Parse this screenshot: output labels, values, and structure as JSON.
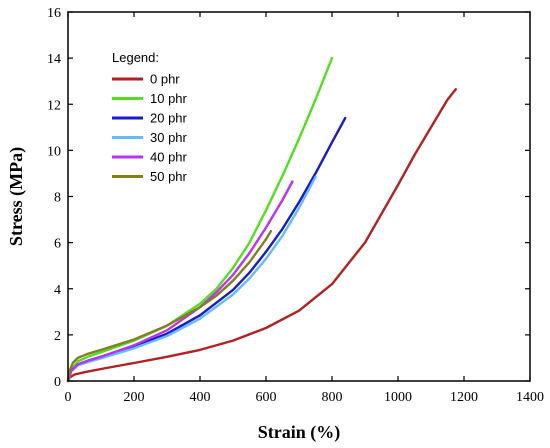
{
  "chart_data": {
    "type": "line",
    "title": "",
    "xlabel": "Strain (%)",
    "ylabel": "Stress (MPa)",
    "xlim": [
      0,
      1400
    ],
    "ylim": [
      0,
      16
    ],
    "xticks": [
      0,
      200,
      400,
      600,
      800,
      1000,
      1200,
      1400
    ],
    "yticks": [
      0,
      2,
      4,
      6,
      8,
      10,
      12,
      14,
      16
    ],
    "grid": false,
    "legend": {
      "title": "Legend:",
      "position": "top-left"
    },
    "series": [
      {
        "name": "0 phr",
        "color": "#b22222",
        "x": [
          0,
          5,
          20,
          50,
          100,
          200,
          300,
          400,
          500,
          600,
          700,
          800,
          900,
          1000,
          1050,
          1100,
          1150,
          1175
        ],
        "y": [
          0,
          0.15,
          0.28,
          0.38,
          0.52,
          0.78,
          1.05,
          1.35,
          1.75,
          2.3,
          3.05,
          4.2,
          6.0,
          8.5,
          9.8,
          11.0,
          12.2,
          12.65
        ]
      },
      {
        "name": "10 phr",
        "color": "#55dd22",
        "x": [
          0,
          10,
          30,
          60,
          100,
          200,
          300,
          400,
          450,
          500,
          550,
          600,
          650,
          700,
          750,
          800
        ],
        "y": [
          0,
          0.5,
          0.85,
          1.05,
          1.25,
          1.75,
          2.4,
          3.35,
          4.0,
          4.9,
          6.0,
          7.4,
          8.9,
          10.5,
          12.2,
          14.0
        ]
      },
      {
        "name": "20 phr",
        "color": "#1a1acc",
        "x": [
          0,
          10,
          30,
          60,
          100,
          200,
          300,
          400,
          500,
          550,
          600,
          650,
          700,
          750,
          800,
          840
        ],
        "y": [
          0,
          0.45,
          0.72,
          0.88,
          1.05,
          1.5,
          2.05,
          2.85,
          3.95,
          4.7,
          5.6,
          6.6,
          7.75,
          9.0,
          10.35,
          11.4
        ]
      },
      {
        "name": "30 phr",
        "color": "#66bbff",
        "x": [
          0,
          10,
          30,
          60,
          100,
          200,
          300,
          400,
          500,
          550,
          600,
          650,
          700,
          750
        ],
        "y": [
          0,
          0.42,
          0.68,
          0.82,
          0.98,
          1.42,
          1.95,
          2.7,
          3.75,
          4.45,
          5.3,
          6.3,
          7.5,
          8.85
        ]
      },
      {
        "name": "40 phr",
        "color": "#bb33ee",
        "x": [
          0,
          10,
          30,
          60,
          100,
          200,
          300,
          400,
          450,
          500,
          550,
          600,
          650,
          680
        ],
        "y": [
          0,
          0.45,
          0.72,
          0.88,
          1.05,
          1.55,
          2.2,
          3.2,
          3.85,
          4.6,
          5.55,
          6.65,
          7.85,
          8.65
        ]
      },
      {
        "name": "50 phr",
        "color": "#808020",
        "x": [
          0,
          5,
          15,
          30,
          60,
          100,
          200,
          300,
          400,
          450,
          500,
          550,
          600,
          615
        ],
        "y": [
          0,
          0.45,
          0.8,
          1.0,
          1.18,
          1.35,
          1.8,
          2.4,
          3.2,
          3.7,
          4.35,
          5.15,
          6.15,
          6.5
        ]
      }
    ]
  }
}
